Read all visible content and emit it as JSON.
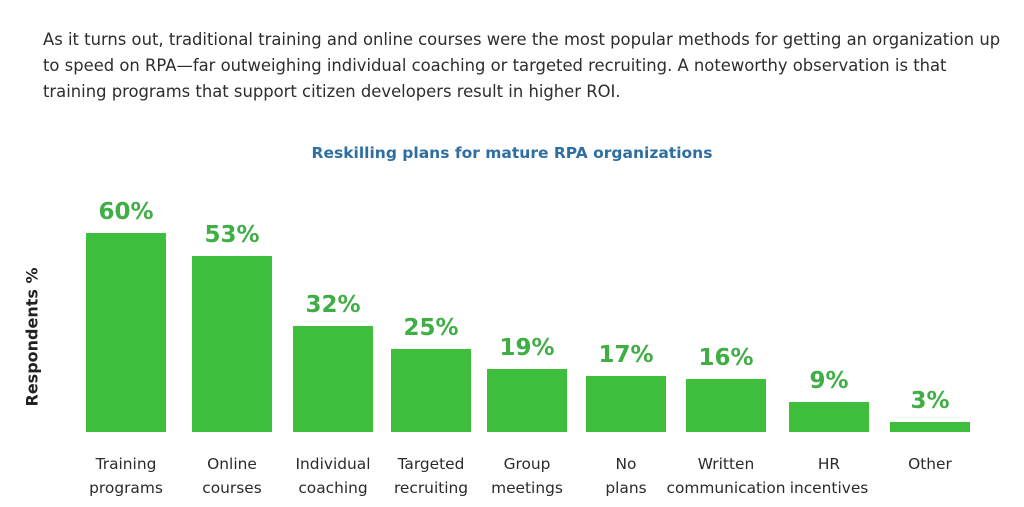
{
  "intro": "As it turns out, traditional training and online courses were the most popular methods for getting an organization up to speed on RPA—far outweighing individual coaching or targeted recruiting. A noteworthy observation is that training programs that support citizen developers result in higher ROI.",
  "colors": {
    "bar": "#3fbd3c",
    "value_label": "#3fae45",
    "title": "#2e6fa3"
  },
  "chart_data": {
    "type": "bar",
    "title": "Reskilling plans for mature RPA organizations",
    "ylabel": "Respondents %",
    "xlabel": "",
    "ylim": [
      0,
      60
    ],
    "grid": false,
    "categories": [
      [
        "Training",
        "programs"
      ],
      [
        "Online",
        "courses"
      ],
      [
        "Individual",
        "coaching"
      ],
      [
        "Targeted",
        "recruiting"
      ],
      [
        "Group",
        "meetings"
      ],
      [
        "No",
        "plans"
      ],
      [
        "Written",
        "communication"
      ],
      [
        "HR",
        "incentives"
      ],
      [
        "Other"
      ]
    ],
    "values": [
      60,
      53,
      32,
      25,
      19,
      17,
      16,
      9,
      3
    ],
    "value_labels": [
      "60%",
      "53%",
      "32%",
      "25%",
      "19%",
      "17%",
      "16%",
      "9%",
      "3%"
    ]
  }
}
